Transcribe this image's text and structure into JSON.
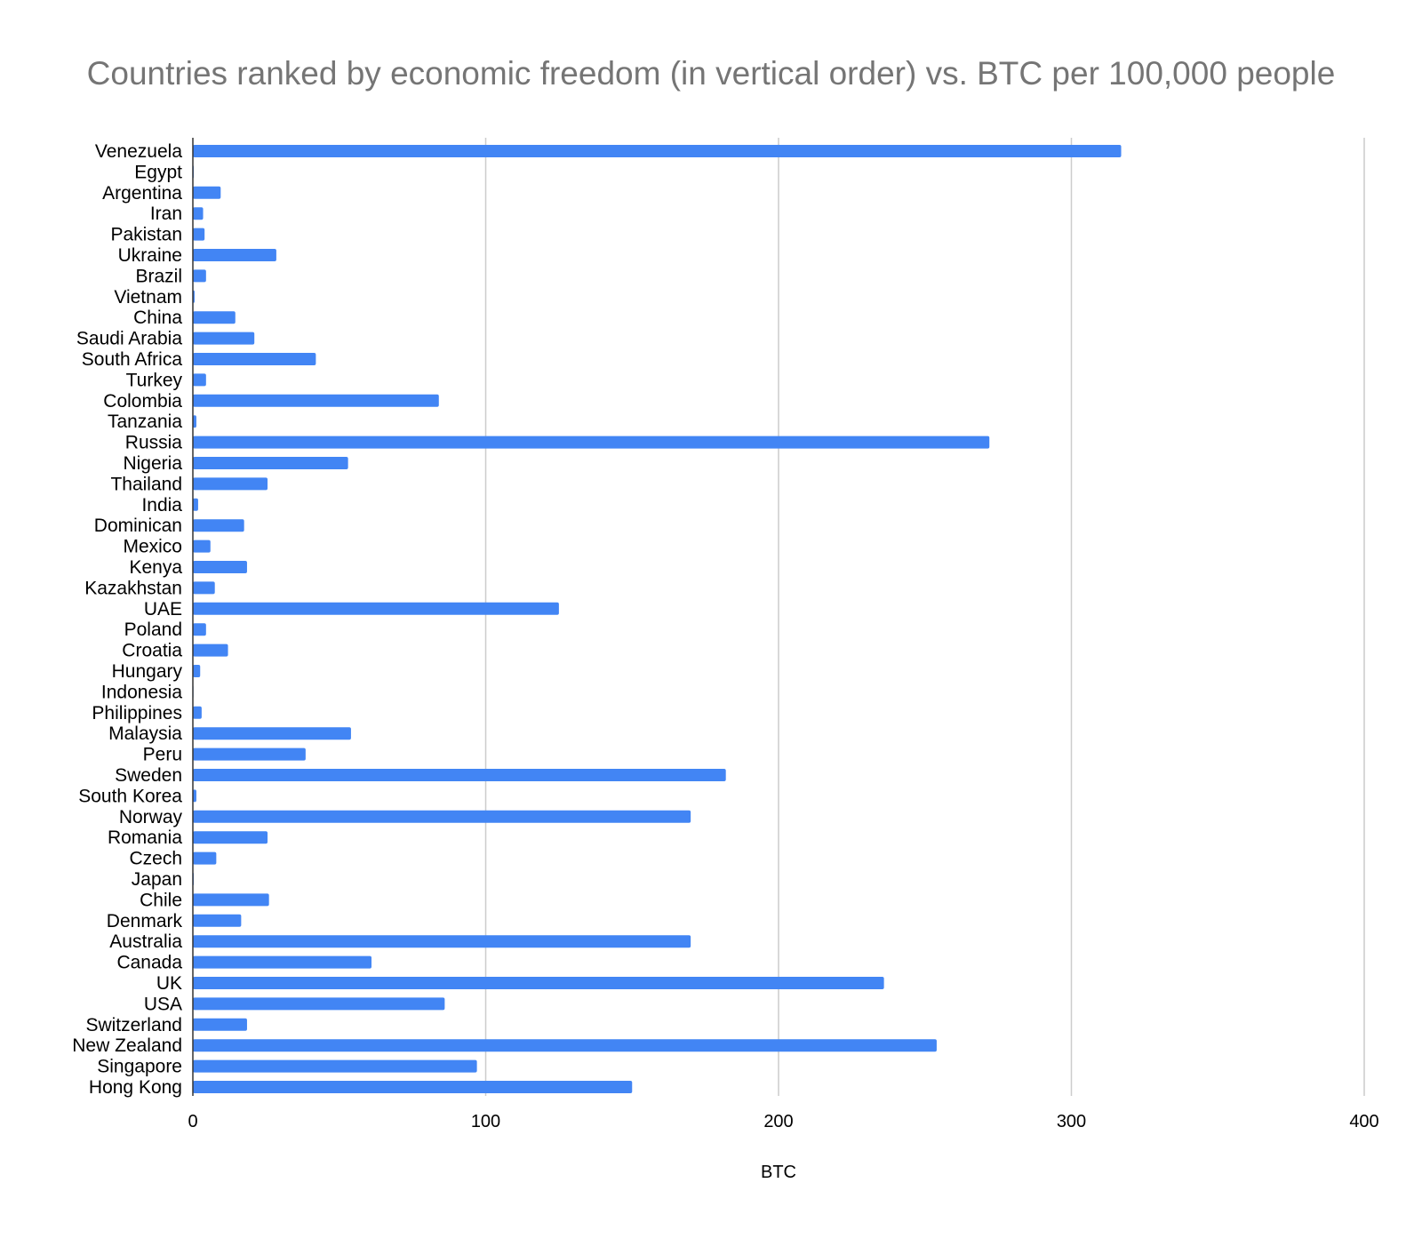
{
  "chart_data": {
    "type": "bar",
    "orientation": "horizontal",
    "title": "Countries ranked by economic freedom (in vertical order) vs. BTC per 100,000 people",
    "xlabel": "BTC",
    "ylabel": "",
    "xlim": [
      0,
      400
    ],
    "xticks": [
      0,
      100,
      200,
      300,
      400
    ],
    "xtick_labels": [
      "0",
      "100",
      "200",
      "300",
      "400"
    ],
    "grid": true,
    "bar_color": "#4285f4",
    "categories": [
      "Venezuela",
      "Egypt",
      "Argentina",
      "Iran",
      "Pakistan",
      "Ukraine",
      "Brazil",
      "Vietnam",
      "China",
      "Saudi Arabia",
      "South Africa",
      "Turkey",
      "Colombia",
      "Tanzania",
      "Russia",
      "Nigeria",
      "Thailand",
      "India",
      "Dominican",
      "Mexico",
      "Kenya",
      "Kazakhstan",
      "UAE",
      "Poland",
      "Croatia",
      "Hungary",
      "Indonesia",
      "Philippines",
      "Malaysia",
      "Peru",
      "Sweden",
      "South Korea",
      "Norway",
      "Romania",
      "Czech",
      "Japan",
      "Chile",
      "Denmark",
      "Australia",
      "Canada",
      "UK",
      "USA",
      "Switzerland",
      "New Zealand",
      "Singapore",
      "Hong Kong"
    ],
    "values": [
      317,
      0.3,
      9.5,
      3.5,
      4,
      28.5,
      4.5,
      0.6,
      14.5,
      21,
      42,
      4.5,
      84,
      1.2,
      272,
      53,
      25.5,
      1.8,
      17.5,
      6,
      18.5,
      7.5,
      125,
      4.5,
      12,
      2.5,
      0.2,
      3,
      54,
      38.5,
      182,
      1.2,
      170,
      25.5,
      8,
      0.3,
      26,
      16.5,
      170,
      61,
      236,
      86,
      18.5,
      254,
      97,
      150
    ]
  }
}
